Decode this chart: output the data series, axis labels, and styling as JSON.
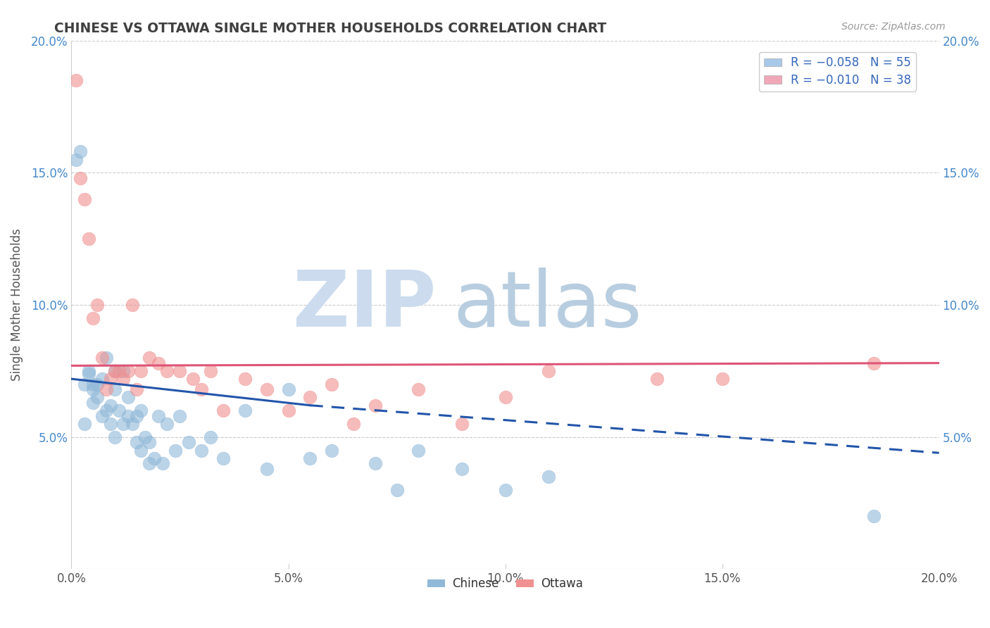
{
  "title": "CHINESE VS OTTAWA SINGLE MOTHER HOUSEHOLDS CORRELATION CHART",
  "source": "Source: ZipAtlas.com",
  "ylabel": "Single Mother Households",
  "xlim": [
    0.0,
    0.2
  ],
  "ylim": [
    0.0,
    0.2
  ],
  "xtick_vals": [
    0.0,
    0.05,
    0.1,
    0.15,
    0.2
  ],
  "ytick_vals": [
    0.05,
    0.1,
    0.15,
    0.2
  ],
  "chinese_color": "#90b8d8",
  "ottawa_color": "#f09090",
  "chinese_line_color": "#2255aa",
  "ottawa_line_color": "#dd5577",
  "background_color": "#ffffff",
  "grid_color": "#cccccc",
  "title_color": "#404040",
  "watermark_zip_color": "#ccdcee",
  "watermark_atlas_color": "#b8cee0",
  "legend_blue_color": "#a8c8e8",
  "legend_pink_color": "#f0a8b8",
  "chinese_scatter_x": [
    0.001,
    0.002,
    0.003,
    0.003,
    0.004,
    0.004,
    0.005,
    0.005,
    0.005,
    0.006,
    0.006,
    0.007,
    0.007,
    0.008,
    0.008,
    0.009,
    0.009,
    0.01,
    0.01,
    0.01,
    0.011,
    0.012,
    0.012,
    0.013,
    0.013,
    0.014,
    0.015,
    0.015,
    0.016,
    0.016,
    0.017,
    0.018,
    0.018,
    0.019,
    0.02,
    0.021,
    0.022,
    0.024,
    0.025,
    0.027,
    0.03,
    0.032,
    0.035,
    0.04,
    0.045,
    0.05,
    0.055,
    0.06,
    0.07,
    0.075,
    0.08,
    0.09,
    0.1,
    0.11,
    0.185
  ],
  "chinese_scatter_y": [
    0.155,
    0.158,
    0.055,
    0.07,
    0.074,
    0.075,
    0.07,
    0.063,
    0.068,
    0.07,
    0.065,
    0.058,
    0.072,
    0.06,
    0.08,
    0.055,
    0.062,
    0.068,
    0.05,
    0.075,
    0.06,
    0.055,
    0.075,
    0.065,
    0.058,
    0.055,
    0.058,
    0.048,
    0.06,
    0.045,
    0.05,
    0.04,
    0.048,
    0.042,
    0.058,
    0.04,
    0.055,
    0.045,
    0.058,
    0.048,
    0.045,
    0.05,
    0.042,
    0.06,
    0.038,
    0.068,
    0.042,
    0.045,
    0.04,
    0.03,
    0.045,
    0.038,
    0.03,
    0.035,
    0.02
  ],
  "ottawa_scatter_x": [
    0.001,
    0.002,
    0.003,
    0.004,
    0.005,
    0.006,
    0.007,
    0.008,
    0.009,
    0.01,
    0.011,
    0.012,
    0.013,
    0.014,
    0.015,
    0.016,
    0.018,
    0.02,
    0.022,
    0.025,
    0.028,
    0.03,
    0.032,
    0.035,
    0.04,
    0.045,
    0.05,
    0.055,
    0.06,
    0.065,
    0.07,
    0.08,
    0.09,
    0.1,
    0.11,
    0.135,
    0.15,
    0.185
  ],
  "ottawa_scatter_y": [
    0.185,
    0.148,
    0.14,
    0.125,
    0.095,
    0.1,
    0.08,
    0.068,
    0.072,
    0.075,
    0.075,
    0.072,
    0.075,
    0.1,
    0.068,
    0.075,
    0.08,
    0.078,
    0.075,
    0.075,
    0.072,
    0.068,
    0.075,
    0.06,
    0.072,
    0.068,
    0.06,
    0.065,
    0.07,
    0.055,
    0.062,
    0.068,
    0.055,
    0.065,
    0.075,
    0.072,
    0.072,
    0.078
  ],
  "chinese_line_x0": 0.0,
  "chinese_line_x_solid_end": 0.055,
  "chinese_line_x_end": 0.2,
  "chinese_line_y0": 0.072,
  "chinese_line_y_solid_end": 0.062,
  "chinese_line_y_end": 0.044,
  "ottawa_line_x0": 0.0,
  "ottawa_line_x_end": 0.2,
  "ottawa_line_y0": 0.077,
  "ottawa_line_y_end": 0.078
}
